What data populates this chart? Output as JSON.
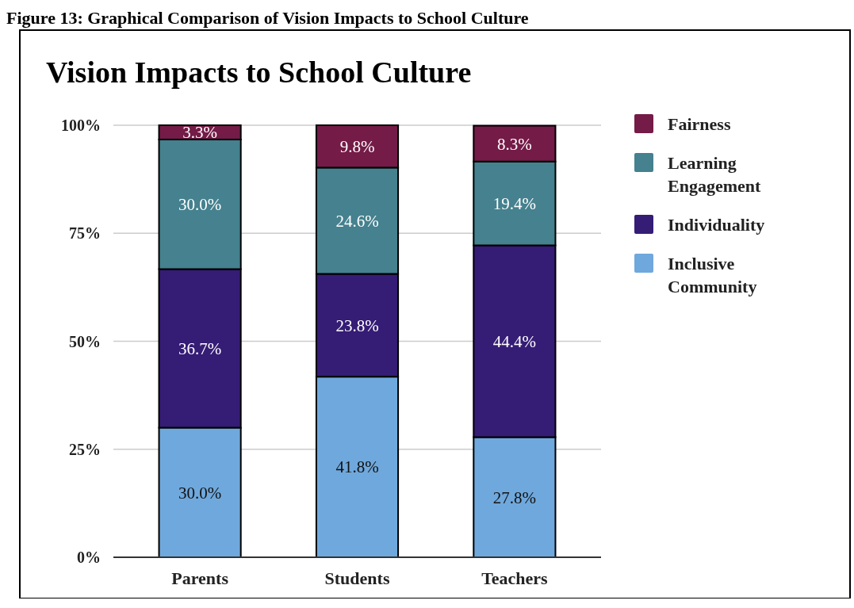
{
  "chart_data": {
    "type": "bar",
    "title": "Vision Impacts to School Culture",
    "annotations": [
      "Figure 13: Graphical Comparison of Vision Impacts to School Culture"
    ],
    "categories": [
      "Parents",
      "Students",
      "Teachers"
    ],
    "stacked": true,
    "series": [
      {
        "name": "Inclusive Community",
        "color": "#6fa8dc",
        "values": [
          30.0,
          41.8,
          27.8
        ],
        "value_labels": [
          "30.0%",
          "41.8%",
          "27.8%"
        ]
      },
      {
        "name": "Individuality",
        "color": "#351c75",
        "values": [
          36.7,
          23.8,
          44.4
        ],
        "value_labels": [
          "36.7%",
          "23.8%",
          "44.4%"
        ]
      },
      {
        "name": "Learning Engagement",
        "color": "#45818e",
        "values": [
          30.0,
          24.6,
          19.4
        ],
        "value_labels": [
          "30.0%",
          "24.6%",
          "19.4%"
        ]
      },
      {
        "name": "Fairness",
        "color": "#741b47",
        "values": [
          3.3,
          9.8,
          8.3
        ],
        "value_labels": [
          "3.3%",
          "9.8%",
          "8.3%"
        ]
      }
    ],
    "ylim": [
      0,
      100
    ],
    "yticks": [
      {
        "value": 0,
        "label": "0%"
      },
      {
        "value": 25,
        "label": "25%"
      },
      {
        "value": 50,
        "label": "50%"
      },
      {
        "value": 75,
        "label": "75%"
      },
      {
        "value": 100,
        "label": "100%"
      }
    ],
    "grid": "y",
    "legend": "right"
  }
}
